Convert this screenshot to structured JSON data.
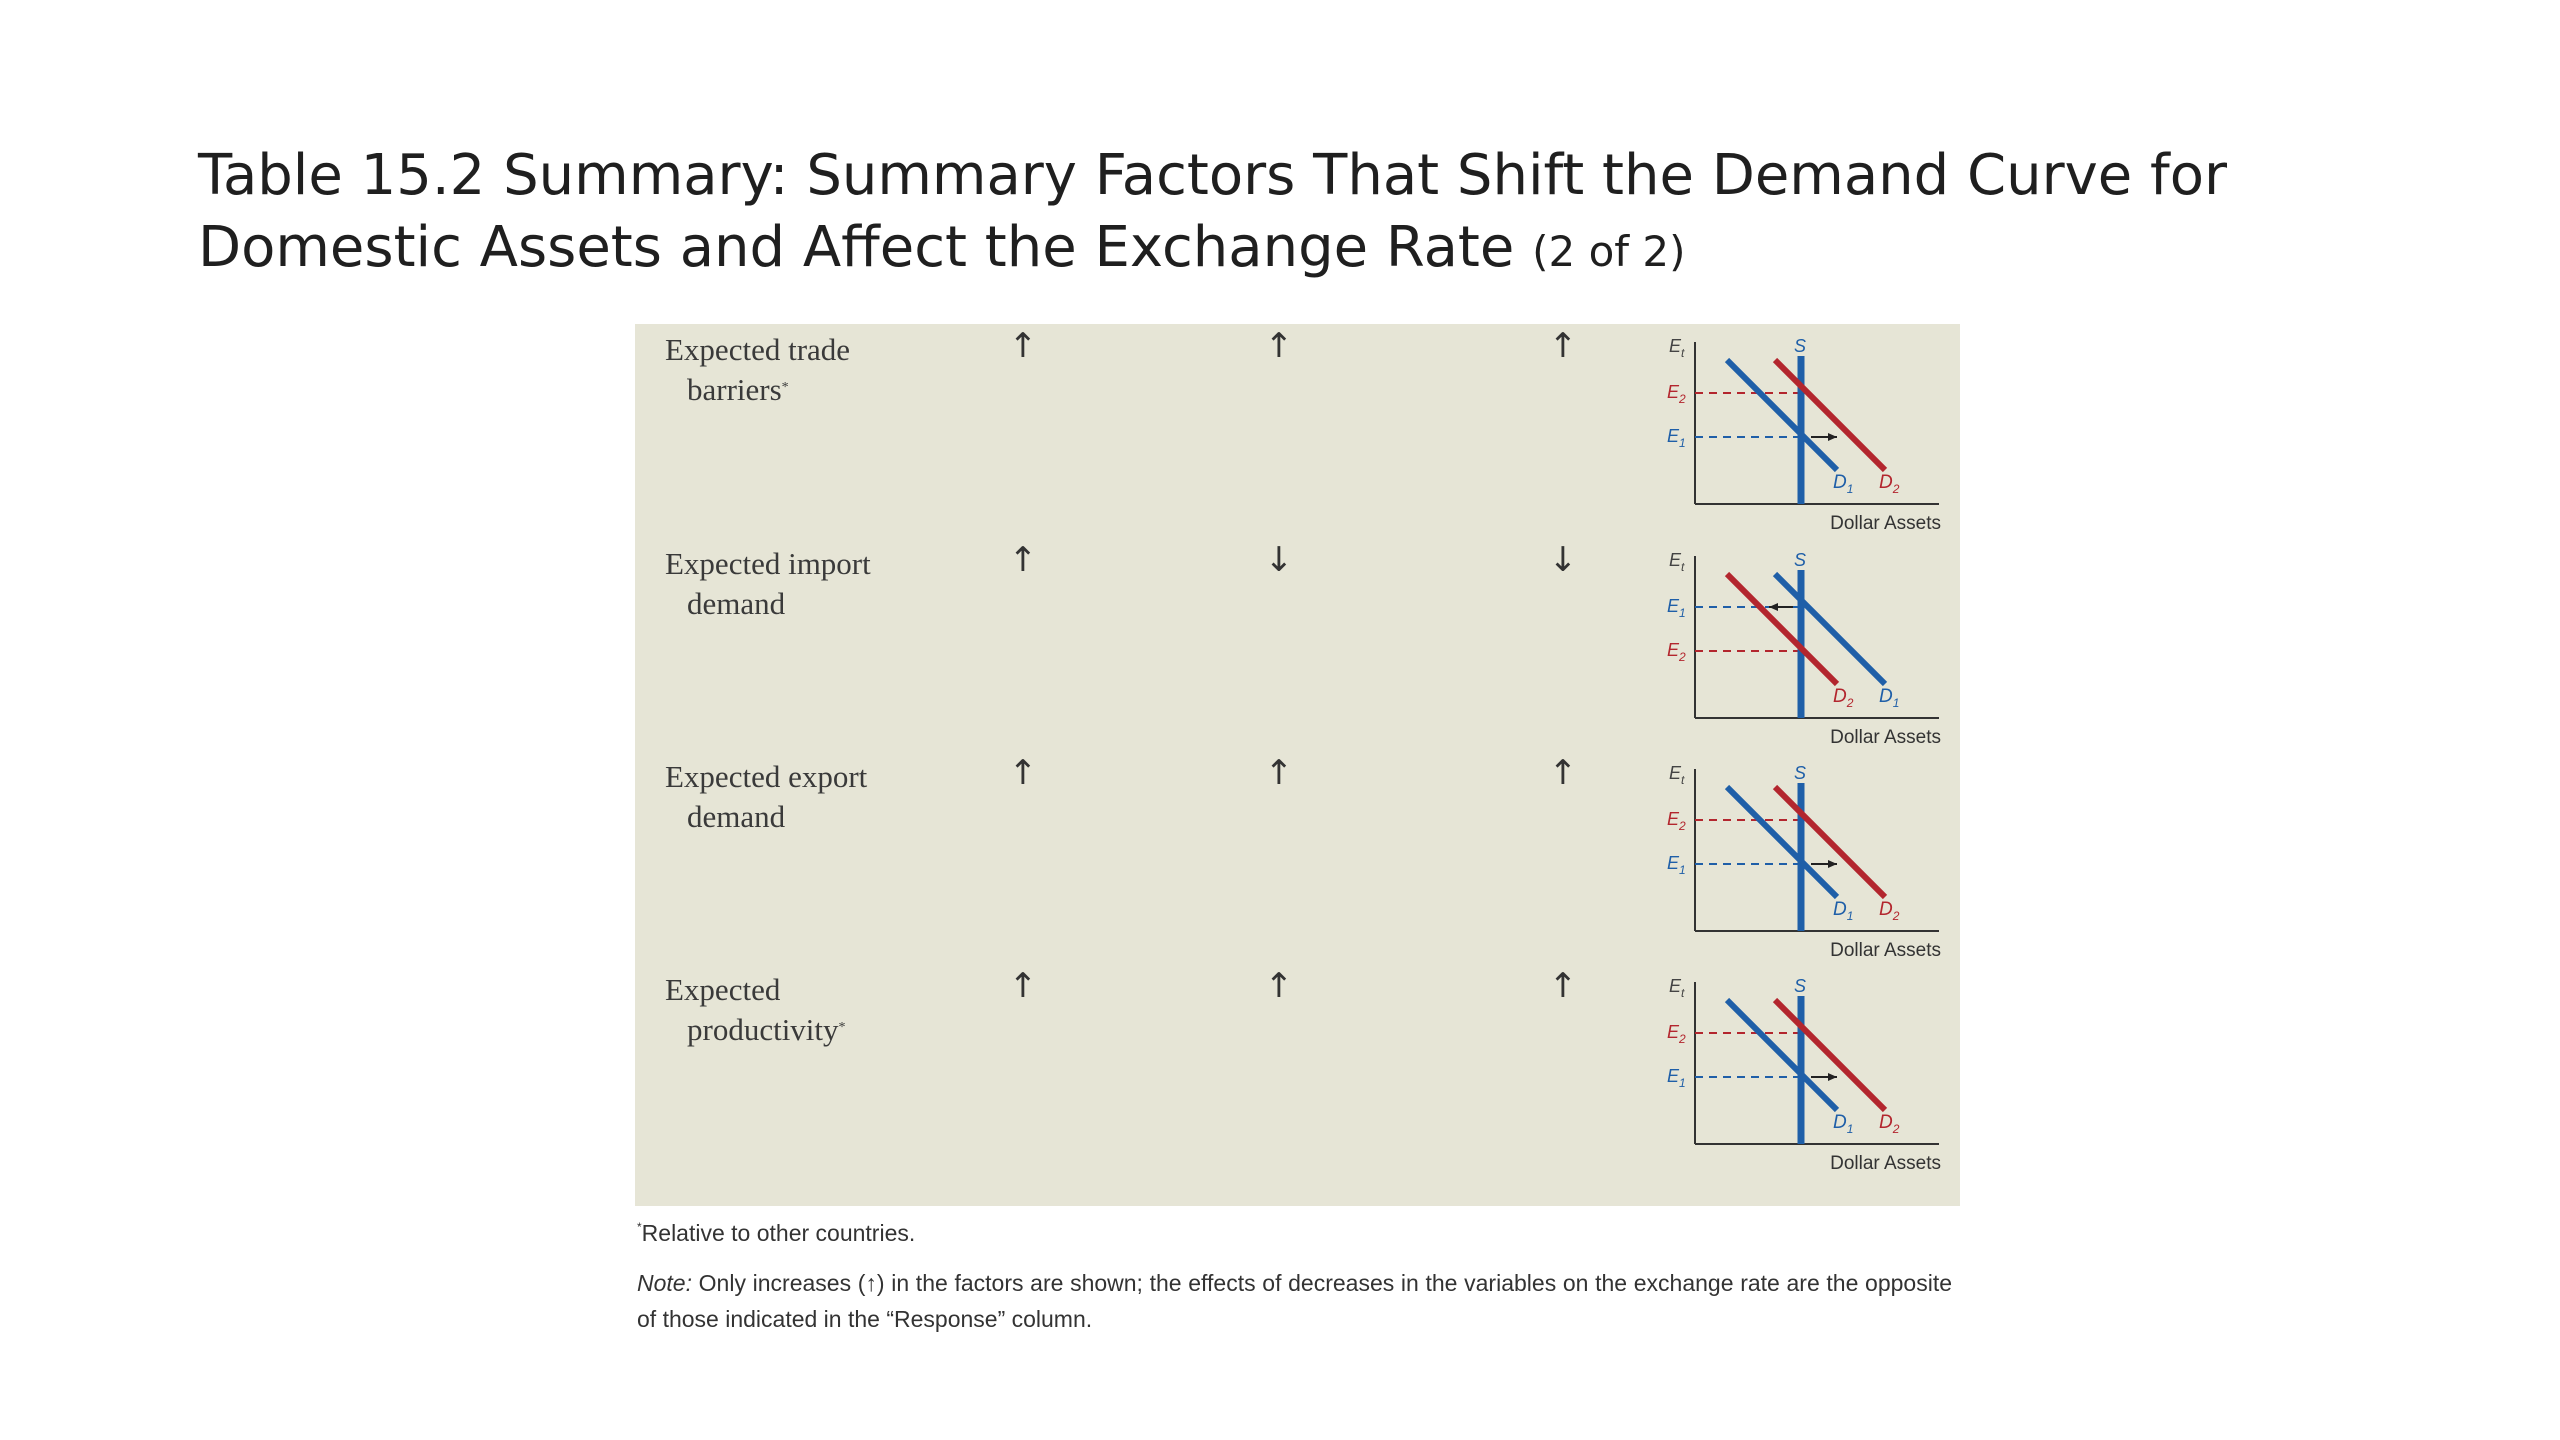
{
  "title": {
    "main": "Table 15.2 Summary: Summary Factors That Shift the Demand Curve for Domestic Assets and Affect the Exchange Rate",
    "sub": "(2 of 2)"
  },
  "axis_labels": {
    "y": "E",
    "y_subscript": "t",
    "x": "Dollar Assets",
    "supply": "S",
    "e1": "E",
    "e1_sub": "1",
    "e2": "E",
    "e2_sub": "2",
    "d1": "D",
    "d1_sub": "1",
    "d2": "D",
    "d2_sub": "2"
  },
  "colors": {
    "blue": "#1f5fa8",
    "red": "#b3262e",
    "panel": "#e6e5d6"
  },
  "rows": [
    {
      "line1": "Expected trade",
      "line2": "barriers",
      "star": "*",
      "col1": "↑",
      "col2": "↑",
      "col3": "↑",
      "shift": "right"
    },
    {
      "line1": "Expected import",
      "line2": "demand",
      "star": "",
      "col1": "↑",
      "col2": "↓",
      "col3": "↓",
      "shift": "left"
    },
    {
      "line1": "Expected export",
      "line2": "demand",
      "star": "",
      "col1": "↑",
      "col2": "↑",
      "col3": "↑",
      "shift": "right"
    },
    {
      "line1": "Expected",
      "line2": "productivity",
      "star": "*",
      "col1": "↑",
      "col2": "↑",
      "col3": "↑",
      "shift": "right"
    }
  ],
  "footnote": {
    "mark": "*",
    "text": "Relative to other countries."
  },
  "note": {
    "lead": "Note:",
    "text": "Only increases (↑) in the factors are shown; the effects of decreases in the variables on the exchange rate are the opposite of those indicated in the “Response” column."
  }
}
